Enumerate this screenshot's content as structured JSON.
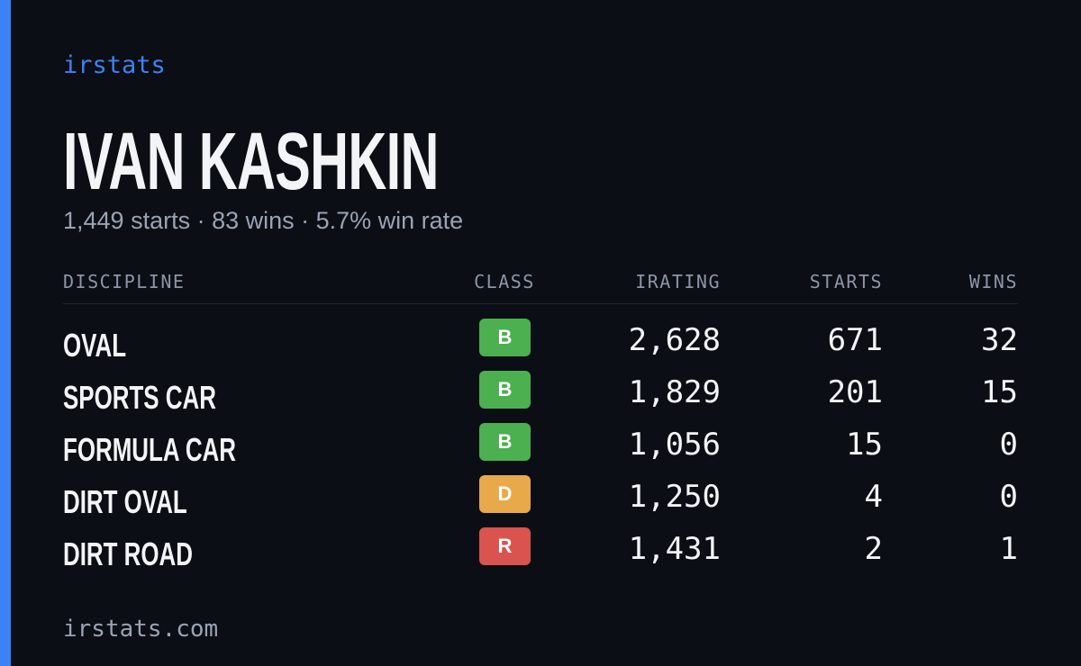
{
  "brand": "irstats",
  "driver": {
    "name": "IVAN KASHKIN",
    "summary": "1,449 starts · 83 wins · 5.7% win rate"
  },
  "table": {
    "header": [
      "DISCIPLINE",
      "CLASS",
      "IRATING",
      "STARTS",
      "WINS"
    ],
    "rows": [
      [
        "OVAL",
        "B",
        "2,628",
        "671",
        "32"
      ],
      [
        "SPORTS CAR",
        "B",
        "1,829",
        "201",
        "15"
      ],
      [
        "FORMULA CAR",
        "B",
        "1,056",
        "15",
        "0"
      ],
      [
        "DIRT OVAL",
        "D",
        "1,250",
        "4",
        "0"
      ],
      [
        "DIRT ROAD",
        "R",
        "1,431",
        "2",
        "1"
      ]
    ]
  },
  "footer": "irstats.com"
}
